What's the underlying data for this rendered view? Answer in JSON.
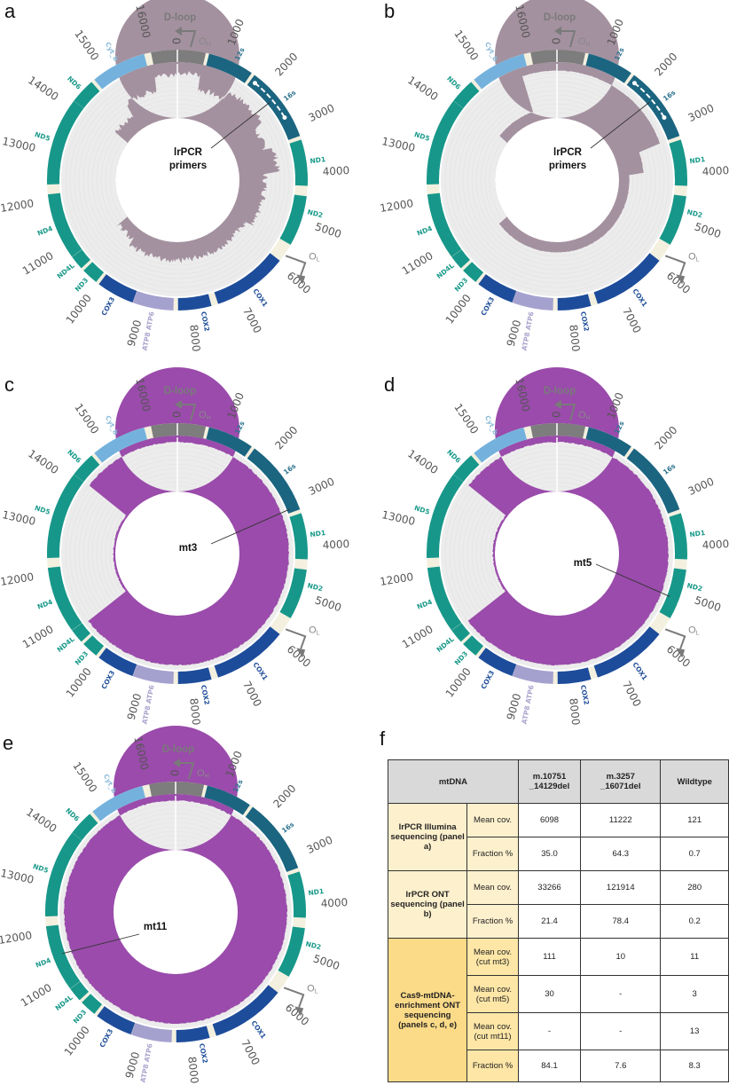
{
  "genome_length": 16569,
  "colors": {
    "dloop": "#7d7d7d",
    "rrna": "#1b6581",
    "nd": "#17978a",
    "cox": "#1d4c9b",
    "atp": "#a5a1cf",
    "cytb": "#74b2dd",
    "gap": "#f3f0df",
    "plot_bg": "#ececec",
    "coverage_pcr": "#a4919f",
    "coverage_cas9": "#9a4bab",
    "label_nd": "#1a9a8a",
    "label_cox": "#1f4e98",
    "label_rrna": "#2e7390",
    "label_atp": "#a9a4cd",
    "label_cytb": "#8cbbd9"
  },
  "ticks": [
    "0",
    "1000",
    "2000",
    "3000",
    "4000",
    "5000",
    "6000",
    "7000",
    "8000",
    "9000",
    "10000",
    "11000",
    "12000",
    "13000",
    "14000",
    "15000",
    "16000"
  ],
  "genes": [
    {
      "name": "D-loop",
      "start": 16030,
      "end": 580,
      "type": "dloop",
      "label": ""
    },
    {
      "name": "12s",
      "start": 650,
      "end": 1600,
      "type": "rrna",
      "label": "12s"
    },
    {
      "name": "16s",
      "start": 1670,
      "end": 3230,
      "type": "rrna",
      "label": "16s"
    },
    {
      "name": "ND1",
      "start": 3310,
      "end": 4260,
      "type": "nd",
      "label": "ND1"
    },
    {
      "name": "ND2",
      "start": 4470,
      "end": 5510,
      "type": "nd",
      "label": "ND2"
    },
    {
      "name": "COX1",
      "start": 5900,
      "end": 7445,
      "type": "cox",
      "label": "COX1"
    },
    {
      "name": "COX2",
      "start": 7585,
      "end": 8270,
      "type": "cox",
      "label": "COX2"
    },
    {
      "name": "ATP8/ATP6",
      "start": 8365,
      "end": 9205,
      "type": "atp",
      "label": "ATP8 ATP6"
    },
    {
      "name": "COX3",
      "start": 9210,
      "end": 9990,
      "type": "cox",
      "label": "COX3"
    },
    {
      "name": "ND3",
      "start": 10060,
      "end": 10405,
      "type": "nd",
      "label": "ND3"
    },
    {
      "name": "ND4L",
      "start": 10470,
      "end": 10766,
      "type": "nd",
      "label": "ND4L"
    },
    {
      "name": "ND4",
      "start": 10770,
      "end": 12137,
      "type": "nd",
      "label": "ND4"
    },
    {
      "name": "ND5",
      "start": 12337,
      "end": 14148,
      "type": "nd",
      "label": "ND5"
    },
    {
      "name": "ND6",
      "start": 14150,
      "end": 14673,
      "type": "nd",
      "label": "ND6"
    },
    {
      "name": "Cyt_b",
      "start": 14747,
      "end": 15887,
      "type": "cytb",
      "label": "Cyt_b"
    }
  ],
  "dloop_label": "D-loop",
  "oh_label": "OH",
  "ol_label": "OL",
  "panels": [
    {
      "letter": "a",
      "fill": "coverage_pcr",
      "noise": 0.06,
      "coverage": [
        [
          0,
          600,
          0.88
        ],
        [
          600,
          1400,
          0.6
        ],
        [
          1400,
          2600,
          0.78
        ],
        [
          2600,
          3250,
          0.6
        ],
        [
          3250,
          3950,
          0.75
        ],
        [
          3950,
          5600,
          0.5
        ],
        [
          5600,
          8000,
          0.34
        ],
        [
          8000,
          10000,
          0.36
        ],
        [
          10000,
          10751,
          0.22
        ],
        [
          10751,
          14129,
          0
        ],
        [
          14129,
          15000,
          0.3
        ],
        [
          15000,
          16000,
          0.58
        ],
        [
          16000,
          16569,
          0.86
        ]
      ],
      "annotation": {
        "lines": [
          "lrPCR",
          "primers"
        ],
        "target_bp": 2300
      },
      "primer_arrow": true
    },
    {
      "letter": "b",
      "fill": "coverage_pcr",
      "noise": 0.005,
      "coverage": [
        [
          0,
          3250,
          0.92
        ],
        [
          3250,
          3950,
          0.48
        ],
        [
          3950,
          10751,
          0.2
        ],
        [
          10751,
          14129,
          0
        ],
        [
          14129,
          15700,
          0.2
        ],
        [
          15700,
          16569,
          0.92
        ]
      ],
      "annotation": {
        "lines": [
          "lrPCR",
          "primers"
        ],
        "target_bp": 2300
      },
      "primer_arrow": true
    },
    {
      "letter": "c",
      "fill": "coverage_cas9",
      "noise": 0.01,
      "coverage": [
        [
          0,
          10751,
          0.96
        ],
        [
          10751,
          14129,
          0.04
        ],
        [
          14129,
          16569,
          0.96
        ]
      ],
      "annotation": {
        "lines": [
          "mt3"
        ],
        "target_bp": 3150
      },
      "primer_arrow": false
    },
    {
      "letter": "d",
      "fill": "coverage_cas9",
      "noise": 0.01,
      "coverage": [
        [
          0,
          10751,
          0.96
        ],
        [
          10751,
          14129,
          0.04
        ],
        [
          14129,
          16569,
          0.96
        ]
      ],
      "annotation": {
        "lines": [
          "mt5"
        ],
        "target_bp": 5100
      },
      "primer_arrow": false
    },
    {
      "letter": "e",
      "fill": "coverage_cas9",
      "noise": 0.01,
      "coverage": [
        [
          0,
          16569,
          0.96
        ]
      ],
      "annotation": {
        "lines": [
          "mt11"
        ],
        "target_bp": 11500
      },
      "primer_arrow": false
    }
  ],
  "table": {
    "letter": "f",
    "header": [
      "mtDNA",
      "m.10751\n_14129del",
      "m.3257\n_16071del",
      "Wildtype"
    ],
    "groups": [
      {
        "label": "lrPCR Illumina sequencing (panel a)",
        "bg": "#fdf0cd",
        "metric_bg": "#fdf0cd",
        "rows": [
          {
            "metric": "Mean cov.",
            "values": [
              "6098",
              "11222",
              "121"
            ]
          },
          {
            "metric": "Fraction %",
            "values": [
              "35.0",
              "64.3",
              "0.7"
            ]
          }
        ]
      },
      {
        "label": "lrPCR ONT sequencing (panel b)",
        "bg": "#fdf0cd",
        "metric_bg": "#fdf0cd",
        "rows": [
          {
            "metric": "Mean cov.",
            "values": [
              "33266",
              "121914",
              "280"
            ]
          },
          {
            "metric": "Fraction %",
            "values": [
              "21.4",
              "78.4",
              "0.2"
            ]
          }
        ]
      },
      {
        "label": "Cas9-mtDNA-enrichment ONT sequencing (panels c, d, e)",
        "bg": "#fbda88",
        "metric_bg": "#fde6a6",
        "rows": [
          {
            "metric": "Mean cov. (cut mt3)",
            "values": [
              "111",
              "10",
              "11"
            ]
          },
          {
            "metric": "Mean cov. (cut mt5)",
            "values": [
              "30",
              "-",
              "3"
            ]
          },
          {
            "metric": "Mean cov. (cut mt11)",
            "values": [
              "-",
              "-",
              "13"
            ]
          },
          {
            "metric": "Fraction %",
            "values": [
              "84.1",
              "7.6",
              "8.3"
            ]
          }
        ]
      }
    ]
  }
}
